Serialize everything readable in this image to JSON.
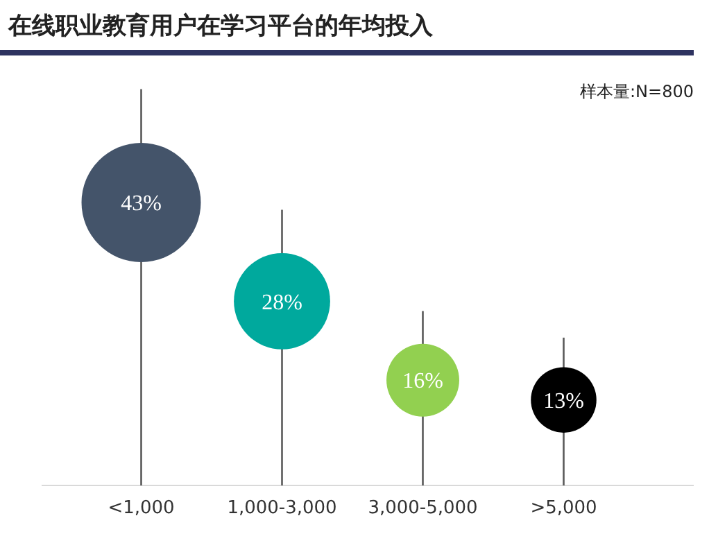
{
  "chart_data": {
    "type": "lollipop",
    "title": "在线职业教育用户在学习平台的年均投入",
    "annotations": [
      "样本量:N=800"
    ],
    "categories": [
      "<1,000",
      "1,000-3,000",
      "3,000-5,000",
      ">5,000"
    ],
    "values": [
      43,
      28,
      16,
      13
    ],
    "value_labels": [
      "43%",
      "28%",
      "16%",
      "13%"
    ],
    "sizes": [
      1,
      0.651,
      0.372,
      0.302
    ],
    "grid": "x",
    "colors": [
      "#44546a",
      "#00a99d",
      "#92d050",
      "#000000"
    ]
  }
}
